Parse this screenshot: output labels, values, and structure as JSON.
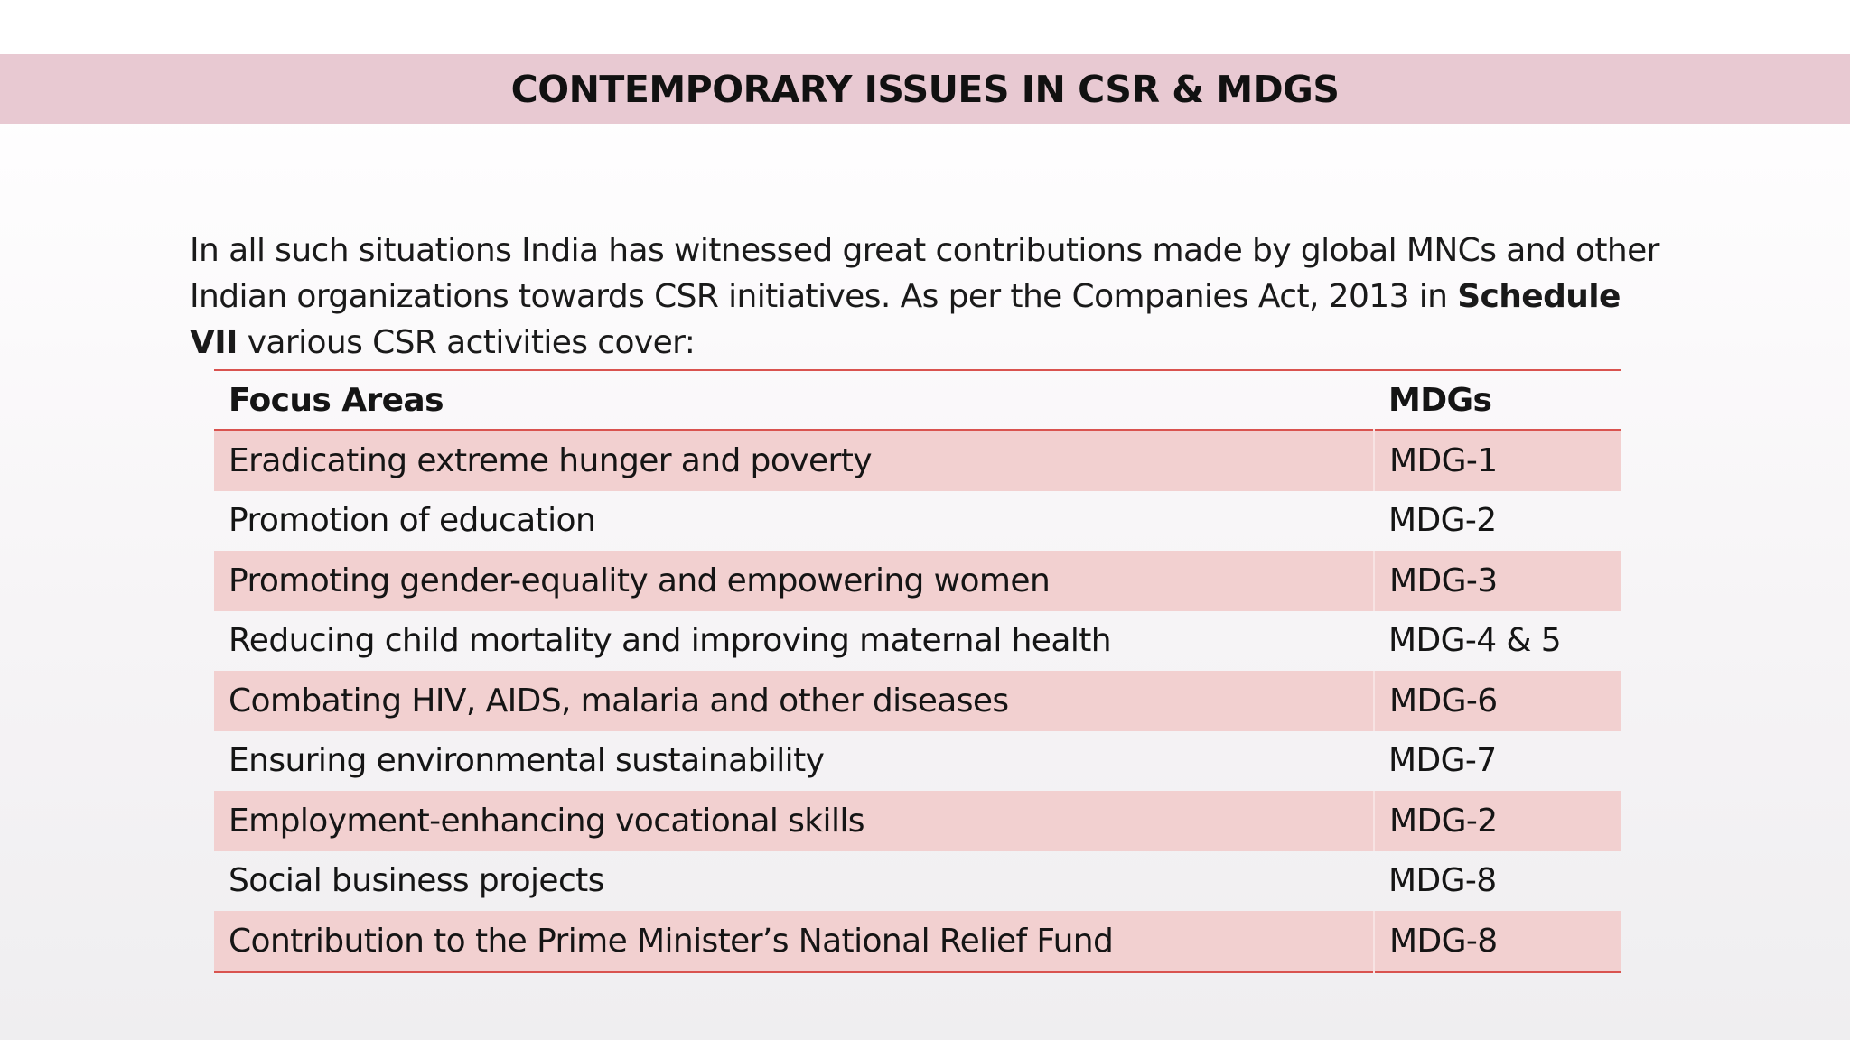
{
  "slide": {
    "title": "CONTEMPORARY ISSUES IN CSR & MDGS",
    "intro_text_part1": "In all such situations India has witnessed great contributions made by global MNCs and other Indian organizations towards CSR initiatives. As per the Companies Act, 2013 in ",
    "intro_text_bold": "Schedule VII",
    "intro_text_part2": " various CSR activities cover:"
  },
  "table": {
    "headers": {
      "focus": "Focus Areas",
      "mdg": "MDGs"
    },
    "rows": [
      {
        "focus": "Eradicating extreme hunger and poverty",
        "mdg": "MDG-1"
      },
      {
        "focus": "Promotion of education",
        "mdg": "MDG-2"
      },
      {
        "focus": "Promoting gender-equality and empowering women",
        "mdg": "MDG-3"
      },
      {
        "focus": "Reducing child mortality and improving maternal health",
        "mdg": "MDG-4 & 5"
      },
      {
        "focus": "Combating HIV, AIDS, malaria and other diseases",
        "mdg": "MDG-6"
      },
      {
        "focus": "Ensuring environmental sustainability",
        "mdg": "MDG-7"
      },
      {
        "focus": "Employment-enhancing vocational skills",
        "mdg": "MDG-2"
      },
      {
        "focus": "Social business projects",
        "mdg": "MDG-8"
      },
      {
        "focus": "Contribution to the Prime Minister’s National Relief Fund",
        "mdg": "MDG-8"
      }
    ]
  },
  "colors": {
    "title_bar": "#e8c9d2",
    "row_band": "#f2d0d0",
    "rule": "#d9534f"
  }
}
